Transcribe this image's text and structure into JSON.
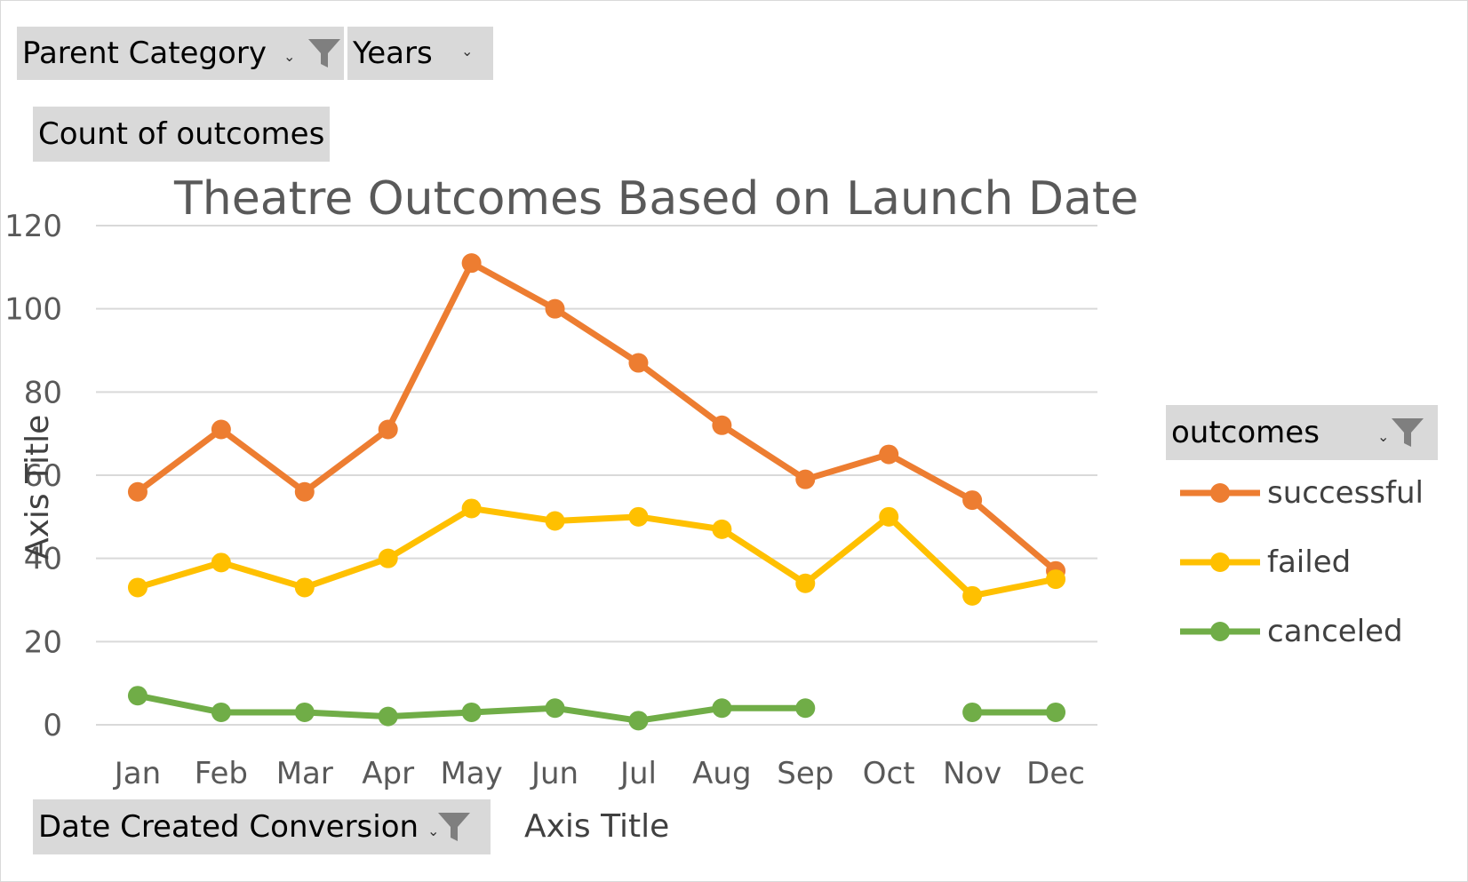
{
  "filters": {
    "parent_category_label": "Parent Category",
    "years_label": "Years",
    "values_label": "Count of outcomes",
    "axis_field_label": "Date Created Conversion",
    "legend_field_label": "outcomes"
  },
  "colors": {
    "successful": "#ED7D31",
    "failed": "#FFC000",
    "canceled": "#70AD47",
    "gridline": "#d9d9d9",
    "filter_bg": "#d9d9d9"
  },
  "chart_data": {
    "type": "line",
    "title": "Theatre Outcomes Based on Launch Date",
    "xlabel": "Axis Title",
    "ylabel": "Axis Title",
    "ylim": [
      0,
      120
    ],
    "yticks": [
      0,
      20,
      40,
      60,
      80,
      100,
      120
    ],
    "grid": true,
    "legend_position": "right",
    "categories": [
      "Jan",
      "Feb",
      "Mar",
      "Apr",
      "May",
      "Jun",
      "Jul",
      "Aug",
      "Sep",
      "Oct",
      "Nov",
      "Dec"
    ],
    "series": [
      {
        "name": "successful",
        "values": [
          56,
          71,
          56,
          71,
          111,
          100,
          87,
          72,
          59,
          65,
          54,
          37
        ]
      },
      {
        "name": "failed",
        "values": [
          33,
          39,
          33,
          40,
          52,
          49,
          50,
          47,
          34,
          50,
          31,
          35
        ]
      },
      {
        "name": "canceled",
        "values": [
          7,
          3,
          3,
          2,
          3,
          4,
          1,
          4,
          4,
          null,
          3,
          3
        ]
      }
    ]
  }
}
